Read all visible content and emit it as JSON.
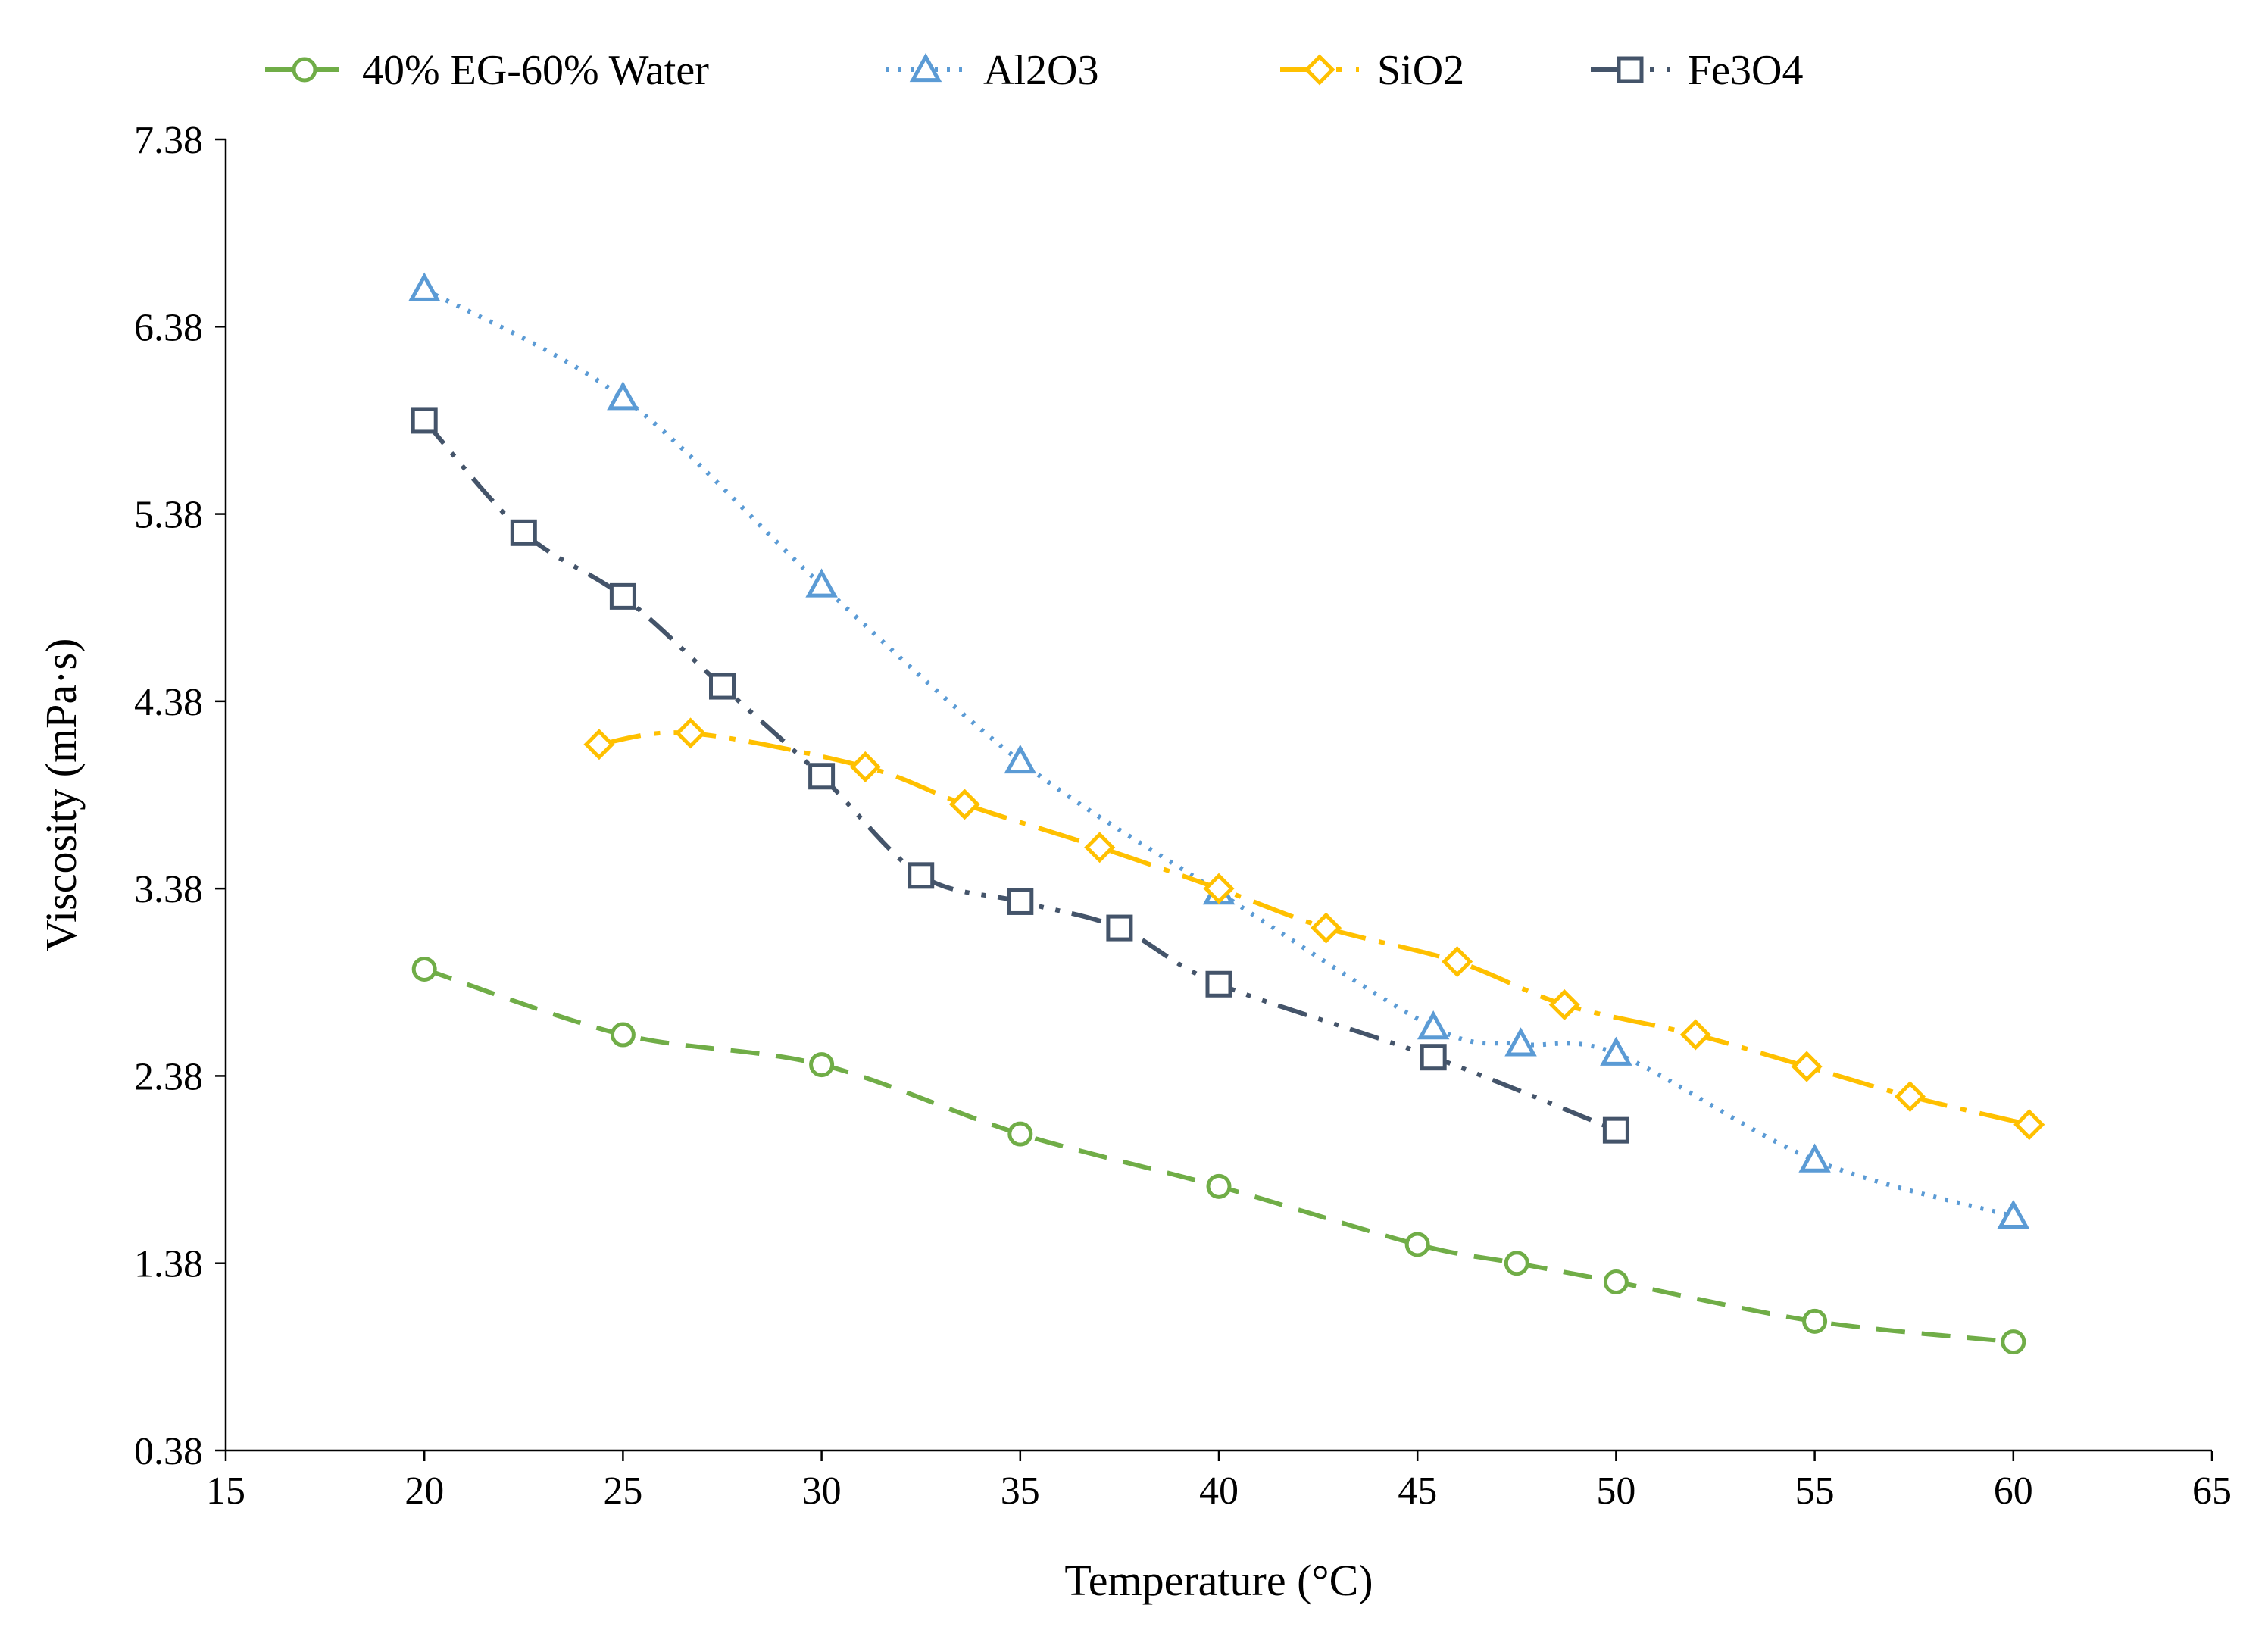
{
  "chart_data": {
    "type": "line",
    "title": "",
    "xlabel": "Temperature (°C)",
    "ylabel": "Viscosity (mPa·s)",
    "xlim": [
      15,
      65
    ],
    "ylim": [
      0.38,
      7.38
    ],
    "xticks": [
      15,
      20,
      25,
      30,
      35,
      40,
      45,
      50,
      55,
      60,
      65
    ],
    "yticks": [
      0.38,
      1.38,
      2.38,
      3.38,
      4.38,
      5.38,
      6.38,
      7.38
    ],
    "xtick_labels": [
      "15",
      "20",
      "25",
      "30",
      "35",
      "40",
      "45",
      "50",
      "55",
      "60",
      "65"
    ],
    "ytick_labels": [
      "0.38",
      "1.38",
      "2.38",
      "3.38",
      "4.38",
      "5.38",
      "6.38",
      "7.38"
    ],
    "grid": false,
    "legend_position": "top",
    "series": [
      {
        "name": "40% EG-60% Water",
        "color": "#70AD47",
        "marker": "circle",
        "dash": "long-dash",
        "x": [
          20,
          25,
          30,
          35,
          40,
          45,
          47.5,
          50,
          55,
          60
        ],
        "y": [
          2.95,
          2.6,
          2.44,
          2.07,
          1.79,
          1.48,
          1.38,
          1.28,
          1.07,
          0.96
        ]
      },
      {
        "name": "Al2O3",
        "color": "#5B9BD5",
        "marker": "triangle",
        "dash": "dotted",
        "x": [
          20,
          25,
          30,
          35,
          40,
          45.4,
          47.6,
          50,
          55,
          60
        ],
        "y": [
          6.58,
          6.0,
          5.0,
          4.06,
          3.36,
          2.64,
          2.55,
          2.5,
          1.93,
          1.63
        ]
      },
      {
        "name": "SiO2",
        "color": "#FFC000",
        "marker": "diamond",
        "dash": "long-dash-dot",
        "x": [
          24.4,
          26.7,
          31.1,
          33.6,
          37,
          40,
          42.7,
          46,
          48.7,
          52,
          54.8,
          57.4,
          60.4
        ],
        "y": [
          4.15,
          4.21,
          4.03,
          3.83,
          3.6,
          3.38,
          3.17,
          2.99,
          2.76,
          2.6,
          2.43,
          2.27,
          2.12
        ]
      },
      {
        "name": "Fe3O4",
        "color": "#44546A",
        "marker": "square",
        "dash": "dash-dot-dot",
        "x": [
          20,
          22.5,
          25,
          27.5,
          30,
          32.5,
          35,
          37.5,
          40,
          45.4,
          50
        ],
        "y": [
          5.88,
          5.28,
          4.94,
          4.46,
          3.98,
          3.45,
          3.31,
          3.17,
          2.87,
          2.48,
          2.09
        ]
      }
    ]
  }
}
